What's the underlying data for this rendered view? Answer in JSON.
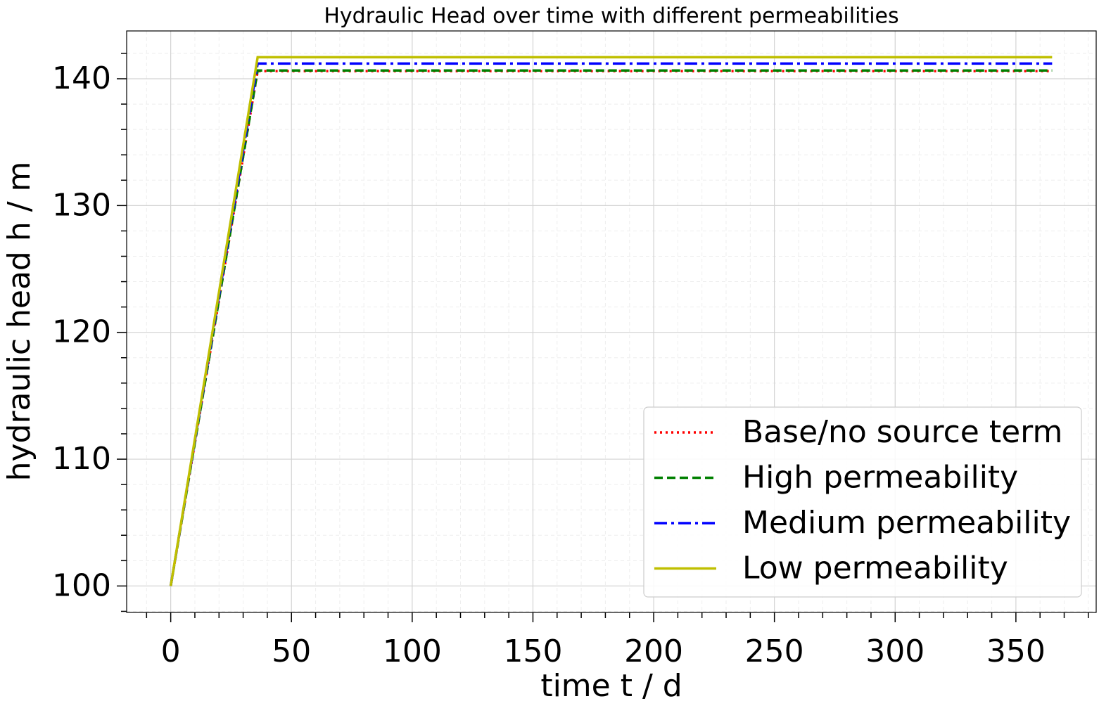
{
  "chart_data": {
    "type": "line",
    "title": "Hydraulic Head over time with different permeabilities",
    "xlabel": "time t / d",
    "ylabel": "hydraulic head h / m",
    "x": [
      0,
      36,
      365
    ],
    "series": [
      {
        "name": "Base/no source term",
        "color": "#ff0000",
        "style": "dotted",
        "values": [
          100,
          140.6,
          140.6
        ]
      },
      {
        "name": "High permeability",
        "color": "#008000",
        "style": "dashed",
        "values": [
          100,
          140.65,
          140.65
        ]
      },
      {
        "name": "Medium permeability",
        "color": "#0000ff",
        "style": "dashdot",
        "values": [
          100,
          141.2,
          141.2
        ]
      },
      {
        "name": "Low permeability",
        "color": "#bfbf00",
        "style": "solid",
        "values": [
          100,
          141.7,
          141.7
        ]
      }
    ],
    "xlim": [
      -18.25,
      383.25
    ],
    "ylim": [
      97.915,
      143.77
    ],
    "xticks": [
      0,
      50,
      100,
      150,
      200,
      250,
      300,
      350
    ],
    "yticks": [
      100,
      110,
      120,
      130,
      140
    ],
    "xminorticks": [
      -10,
      10,
      20,
      30,
      40,
      60,
      70,
      80,
      90,
      110,
      120,
      130,
      140,
      160,
      170,
      180,
      190,
      210,
      220,
      230,
      240,
      260,
      270,
      280,
      290,
      310,
      320,
      330,
      340,
      360,
      370,
      380
    ],
    "yminorticks": [
      98,
      102,
      104,
      106,
      108,
      112,
      114,
      116,
      118,
      122,
      124,
      126,
      128,
      132,
      134,
      136,
      138,
      142
    ],
    "grid": true,
    "legend": "lower right"
  }
}
